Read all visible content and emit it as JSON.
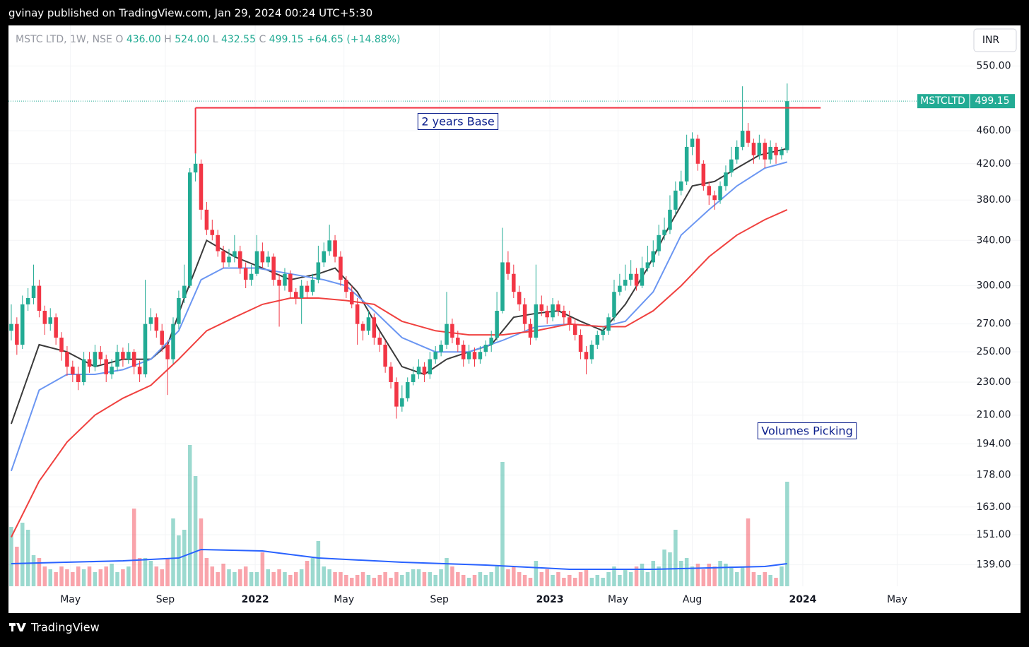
{
  "header": {
    "publisher": "gvinay published on TradingView.com, Jan 29, 2024 00:24 UTC+5:30"
  },
  "footer": {
    "brand": "TradingView"
  },
  "chart_data": {
    "type": "candlestick",
    "symbol_line": "MSTC LTD, 1W, NSE",
    "ohlc_names": [
      "O",
      "H",
      "L",
      "C"
    ],
    "ohlc_labels": [
      "436.00",
      "524.00",
      "432.55",
      "499.15"
    ],
    "change": "+64.65 (+14.88%)",
    "currency": "INR",
    "price_tag": {
      "name": "MSTCLTD",
      "value": 499.15,
      "label": "499.15"
    },
    "annotations": [
      "2 years Base",
      "Volumes Picking"
    ],
    "base_line": {
      "value": 490,
      "from": 33,
      "to": 145,
      "color": "#f23645"
    },
    "up_color": "#22ab94",
    "down_color": "#f23645",
    "log_y": true,
    "grid": true,
    "xlim": [
      -0.5,
      172.7
    ],
    "xticks": [
      {
        "value": 10.6,
        "label": "May"
      },
      {
        "value": 27.6,
        "label": "Sep"
      },
      {
        "value": 43.7,
        "label": "2022"
      },
      {
        "value": 59.6,
        "label": "May"
      },
      {
        "value": 76.7,
        "label": "Sep"
      },
      {
        "value": 96.5,
        "label": "2023"
      },
      {
        "value": 108.7,
        "label": "May"
      },
      {
        "value": 122,
        "label": "Aug"
      },
      {
        "value": 141.8,
        "label": "2024"
      },
      {
        "value": 158.7,
        "label": "May"
      }
    ],
    "ylim": [
      131,
      615
    ],
    "yticks": [
      {
        "value": 139,
        "label": "139.00"
      },
      {
        "value": 151,
        "label": "151.00"
      },
      {
        "value": 163,
        "label": "163.00"
      },
      {
        "value": 178,
        "label": "178.00"
      },
      {
        "value": 194,
        "label": "194.00"
      },
      {
        "value": 210,
        "label": "210.00"
      },
      {
        "value": 230,
        "label": "230.00"
      },
      {
        "value": 250,
        "label": "250.00"
      },
      {
        "value": 270,
        "label": "270.00"
      },
      {
        "value": 300,
        "label": "300.00"
      },
      {
        "value": 340,
        "label": "340.00"
      },
      {
        "value": 380,
        "label": "380.00"
      },
      {
        "value": 420,
        "label": "420.00"
      },
      {
        "value": 460,
        "label": "460.00"
      },
      {
        "value": 550,
        "label": "550.00"
      }
    ],
    "candles": [
      [
        265,
        285,
        258,
        270
      ],
      [
        270,
        275,
        248,
        255
      ],
      [
        255,
        292,
        252,
        285
      ],
      [
        285,
        298,
        280,
        290
      ],
      [
        290,
        318,
        285,
        300
      ],
      [
        300,
        305,
        275,
        280
      ],
      [
        280,
        284,
        262,
        270
      ],
      [
        270,
        282,
        265,
        275
      ],
      [
        275,
        278,
        255,
        260
      ],
      [
        260,
        264,
        244,
        250
      ],
      [
        250,
        254,
        234,
        240
      ],
      [
        240,
        244,
        230,
        235
      ],
      [
        235,
        240,
        225,
        230
      ],
      [
        230,
        250,
        228,
        245
      ],
      [
        245,
        250,
        236,
        240
      ],
      [
        240,
        255,
        237,
        250
      ],
      [
        250,
        254,
        241,
        245
      ],
      [
        245,
        248,
        230,
        235
      ],
      [
        235,
        245,
        232,
        240
      ],
      [
        240,
        255,
        237,
        250
      ],
      [
        250,
        253,
        240,
        245
      ],
      [
        245,
        256,
        242,
        250
      ],
      [
        250,
        252,
        235,
        240
      ],
      [
        240,
        244,
        230,
        235
      ],
      [
        235,
        305,
        233,
        270
      ],
      [
        270,
        282,
        265,
        275
      ],
      [
        275,
        278,
        260,
        265
      ],
      [
        265,
        270,
        250,
        255
      ],
      [
        255,
        258,
        222,
        245
      ],
      [
        245,
        275,
        242,
        270
      ],
      [
        270,
        296,
        266,
        290
      ],
      [
        290,
        318,
        286,
        300
      ],
      [
        300,
        415,
        298,
        410
      ],
      [
        410,
        432,
        400,
        420
      ],
      [
        420,
        425,
        360,
        370
      ],
      [
        370,
        378,
        345,
        350
      ],
      [
        350,
        360,
        340,
        345
      ],
      [
        345,
        350,
        325,
        330
      ],
      [
        330,
        335,
        315,
        320
      ],
      [
        320,
        332,
        316,
        325
      ],
      [
        325,
        345,
        320,
        330
      ],
      [
        330,
        335,
        310,
        315
      ],
      [
        315,
        320,
        298,
        305
      ],
      [
        305,
        318,
        300,
        310
      ],
      [
        310,
        345,
        308,
        330
      ],
      [
        330,
        338,
        315,
        320
      ],
      [
        320,
        330,
        316,
        325
      ],
      [
        325,
        328,
        300,
        305
      ],
      [
        305,
        310,
        268,
        300
      ],
      [
        300,
        315,
        296,
        310
      ],
      [
        310,
        313,
        290,
        295
      ],
      [
        295,
        298,
        285,
        290
      ],
      [
        290,
        305,
        270,
        300
      ],
      [
        300,
        304,
        290,
        295
      ],
      [
        295,
        310,
        292,
        305
      ],
      [
        305,
        335,
        302,
        320
      ],
      [
        320,
        338,
        316,
        330
      ],
      [
        330,
        355,
        326,
        340
      ],
      [
        340,
        345,
        320,
        325
      ],
      [
        325,
        330,
        300,
        305
      ],
      [
        305,
        308,
        290,
        295
      ],
      [
        295,
        300,
        282,
        285
      ],
      [
        285,
        290,
        255,
        270
      ],
      [
        270,
        272,
        258,
        265
      ],
      [
        265,
        280,
        262,
        275
      ],
      [
        275,
        278,
        255,
        260
      ],
      [
        260,
        264,
        250,
        255
      ],
      [
        255,
        258,
        236,
        240
      ],
      [
        240,
        243,
        226,
        230
      ],
      [
        230,
        233,
        208,
        215
      ],
      [
        215,
        228,
        212,
        220
      ],
      [
        220,
        233,
        218,
        230
      ],
      [
        230,
        240,
        228,
        235
      ],
      [
        235,
        245,
        232,
        240
      ],
      [
        240,
        243,
        230,
        235
      ],
      [
        235,
        250,
        232,
        245
      ],
      [
        245,
        254,
        242,
        250
      ],
      [
        250,
        258,
        247,
        255
      ],
      [
        255,
        295,
        252,
        270
      ],
      [
        270,
        274,
        256,
        260
      ],
      [
        260,
        265,
        250,
        255
      ],
      [
        255,
        258,
        240,
        245
      ],
      [
        245,
        255,
        242,
        250
      ],
      [
        250,
        253,
        240,
        245
      ],
      [
        245,
        254,
        242,
        250
      ],
      [
        250,
        258,
        247,
        255
      ],
      [
        255,
        265,
        250,
        260
      ],
      [
        260,
        295,
        258,
        280
      ],
      [
        280,
        352,
        278,
        320
      ],
      [
        320,
        330,
        305,
        310
      ],
      [
        310,
        318,
        290,
        295
      ],
      [
        295,
        300,
        280,
        285
      ],
      [
        285,
        290,
        265,
        270
      ],
      [
        270,
        274,
        255,
        260
      ],
      [
        260,
        318,
        258,
        285
      ],
      [
        285,
        292,
        276,
        280
      ],
      [
        280,
        284,
        270,
        275
      ],
      [
        275,
        290,
        272,
        285
      ],
      [
        285,
        288,
        276,
        280
      ],
      [
        280,
        284,
        270,
        275
      ],
      [
        275,
        280,
        265,
        270
      ],
      [
        270,
        274,
        258,
        262
      ],
      [
        262,
        266,
        245,
        250
      ],
      [
        250,
        254,
        235,
        245
      ],
      [
        245,
        258,
        242,
        255
      ],
      [
        255,
        265,
        252,
        262
      ],
      [
        262,
        268,
        258,
        265
      ],
      [
        265,
        278,
        262,
        275
      ],
      [
        275,
        305,
        272,
        295
      ],
      [
        295,
        310,
        292,
        300
      ],
      [
        300,
        318,
        296,
        305
      ],
      [
        305,
        322,
        300,
        310
      ],
      [
        310,
        315,
        296,
        300
      ],
      [
        300,
        325,
        298,
        315
      ],
      [
        315,
        335,
        312,
        320
      ],
      [
        320,
        340,
        316,
        330
      ],
      [
        330,
        355,
        326,
        345
      ],
      [
        345,
        362,
        340,
        350
      ],
      [
        350,
        385,
        346,
        370
      ],
      [
        370,
        400,
        365,
        390
      ],
      [
        390,
        412,
        385,
        400
      ],
      [
        400,
        455,
        396,
        440
      ],
      [
        440,
        458,
        430,
        450
      ],
      [
        450,
        455,
        412,
        420
      ],
      [
        420,
        424,
        390,
        395
      ],
      [
        395,
        400,
        375,
        385
      ],
      [
        385,
        390,
        370,
        380
      ],
      [
        380,
        400,
        376,
        395
      ],
      [
        395,
        418,
        390,
        410
      ],
      [
        410,
        440,
        405,
        425
      ],
      [
        425,
        448,
        420,
        440
      ],
      [
        440,
        520,
        436,
        460
      ],
      [
        460,
        470,
        440,
        445
      ],
      [
        445,
        450,
        420,
        430
      ],
      [
        430,
        455,
        425,
        445
      ],
      [
        445,
        450,
        415,
        425
      ],
      [
        425,
        448,
        420,
        440
      ],
      [
        440,
        445,
        420,
        430
      ],
      [
        430,
        440,
        425,
        436
      ],
      [
        436,
        524,
        432.55,
        499.15
      ]
    ],
    "volumes": [
      42,
      28,
      45,
      40,
      22,
      20,
      14,
      12,
      10,
      14,
      12,
      10,
      14,
      12,
      14,
      10,
      12,
      14,
      16,
      10,
      12,
      14,
      55,
      20,
      20,
      18,
      14,
      12,
      20,
      48,
      36,
      40,
      100,
      78,
      48,
      20,
      14,
      10,
      16,
      12,
      10,
      12,
      14,
      10,
      10,
      24,
      12,
      10,
      12,
      10,
      8,
      10,
      12,
      18,
      20,
      32,
      14,
      12,
      10,
      10,
      8,
      6,
      8,
      10,
      8,
      6,
      8,
      10,
      6,
      10,
      8,
      10,
      12,
      12,
      10,
      10,
      8,
      12,
      20,
      14,
      10,
      8,
      6,
      8,
      10,
      8,
      10,
      14,
      88,
      12,
      14,
      10,
      8,
      6,
      18,
      10,
      12,
      8,
      10,
      6,
      8,
      6,
      10,
      12,
      6,
      8,
      6,
      10,
      14,
      8,
      12,
      10,
      14,
      16,
      10,
      18,
      14,
      26,
      24,
      40,
      18,
      20,
      14,
      16,
      12,
      16,
      14,
      18,
      16,
      14,
      10,
      14,
      48,
      10,
      8,
      10,
      8,
      6,
      14,
      74
    ],
    "vlim": [
      0,
      100
    ],
    "volume_ma": {
      "color": "#2962ff",
      "x": [
        0,
        20,
        30,
        34,
        45,
        55,
        70,
        85,
        100,
        115,
        125,
        135,
        139
      ],
      "values": [
        16,
        18,
        20,
        26,
        25,
        20,
        17,
        15,
        12,
        12,
        13,
        14,
        16
      ]
    },
    "series": [
      {
        "color": "#3a3a3a",
        "x": [
          0,
          5,
          10,
          15,
          20,
          25,
          28,
          31,
          35,
          40,
          45,
          50,
          55,
          58,
          62,
          66,
          70,
          74,
          78,
          82,
          86,
          90,
          94,
          98,
          102,
          106,
          110,
          114,
          118,
          122,
          126,
          130,
          134,
          139
        ],
        "values": [
          205,
          255,
          250,
          240,
          245,
          245,
          255,
          290,
          340,
          325,
          315,
          305,
          310,
          315,
          295,
          265,
          240,
          235,
          245,
          250,
          255,
          275,
          278,
          280,
          272,
          265,
          285,
          315,
          355,
          395,
          400,
          415,
          430,
          438
        ]
      },
      {
        "color": "#6b96f2",
        "x": [
          0,
          5,
          10,
          15,
          20,
          25,
          30,
          34,
          38,
          44,
          50,
          56,
          60,
          65,
          70,
          76,
          82,
          88,
          94,
          100,
          106,
          110,
          115,
          120,
          125,
          130,
          135,
          139
        ],
        "values": [
          180,
          225,
          235,
          235,
          238,
          245,
          265,
          305,
          315,
          315,
          310,
          305,
          300,
          280,
          260,
          250,
          250,
          258,
          268,
          270,
          268,
          272,
          295,
          345,
          370,
          395,
          415,
          422
        ]
      },
      {
        "color": "#f0413f",
        "x": [
          0,
          5,
          10,
          15,
          20,
          25,
          30,
          35,
          40,
          45,
          50,
          55,
          60,
          65,
          70,
          76,
          82,
          88,
          94,
          100,
          106,
          110,
          115,
          120,
          125,
          130,
          135,
          139
        ],
        "values": [
          150,
          175,
          195,
          210,
          220,
          228,
          245,
          265,
          275,
          285,
          290,
          290,
          288,
          285,
          272,
          265,
          262,
          262,
          265,
          270,
          268,
          268,
          280,
          300,
          325,
          345,
          360,
          370
        ]
      }
    ]
  }
}
